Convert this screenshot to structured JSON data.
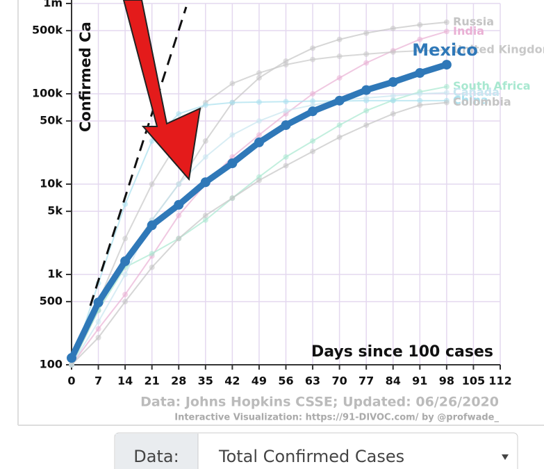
{
  "chart_data": {
    "type": "line",
    "y_label": "Confirmed Ca",
    "x_label": "Days since 100 cases",
    "source": "Data: Johns Hopkins CSSE; Updated: 06/26/2020",
    "credit": "Interactive Visualization: https://91-DIVOC.com/ by @profwade_",
    "x": [
      0,
      7,
      14,
      21,
      28,
      35,
      42,
      49,
      56,
      63,
      70,
      77,
      84,
      91,
      98
    ],
    "series": [
      {
        "name": "Russia",
        "color": "#c4c4c4",
        "values": [
          100,
          400,
          1500,
          4000,
          10000,
          30000,
          80000,
          150000,
          230000,
          320000,
          400000,
          470000,
          530000,
          580000,
          620000
        ]
      },
      {
        "name": "India",
        "color": "#eab0d4",
        "values": [
          100,
          250,
          600,
          1600,
          4500,
          10000,
          20000,
          35000,
          60000,
          100000,
          150000,
          220000,
          300000,
          400000,
          490000
        ]
      },
      {
        "name": "United Kingdom",
        "color": "#c8c8c8",
        "values": [
          100,
          500,
          2500,
          10000,
          30000,
          80000,
          130000,
          170000,
          210000,
          240000,
          260000,
          275000,
          290000,
          300000,
          305000
        ]
      },
      {
        "name": "South Africa",
        "color": "#a8e8d0",
        "values": [
          100,
          400,
          1200,
          1700,
          2500,
          4000,
          7000,
          12000,
          20000,
          30000,
          45000,
          65000,
          85000,
          105000,
          120000
        ]
      },
      {
        "name": "China",
        "color": "#a8e0ee",
        "values": [
          100,
          800,
          6000,
          30000,
          60000,
          75000,
          80000,
          81000,
          82000,
          83000,
          83000,
          84000,
          84000,
          84000,
          84000
        ]
      },
      {
        "name": "Canada",
        "color": "#c8e6f0",
        "values": [
          100,
          300,
          1000,
          4000,
          10000,
          20000,
          35000,
          50000,
          65000,
          75000,
          85000,
          90000,
          95000,
          100000,
          103000
        ]
      },
      {
        "name": "Colombia",
        "color": "#c4c4c4",
        "values": [
          100,
          200,
          500,
          1200,
          2500,
          4500,
          7000,
          11000,
          16000,
          23000,
          33000,
          45000,
          60000,
          75000,
          80000
        ]
      },
      {
        "name": "Mexico",
        "color": "#2f78b8",
        "values": [
          119,
          490,
          1400,
          3500,
          5900,
          10500,
          17000,
          29000,
          45000,
          64000,
          84000,
          110000,
          135000,
          170000,
          210000
        ]
      }
    ],
    "log_y": true,
    "grid": true,
    "xlim": [
      0,
      112
    ],
    "xticks": [
      0,
      7,
      14,
      21,
      28,
      35,
      42,
      49,
      56,
      63,
      70,
      77,
      84,
      91,
      98,
      105,
      112
    ],
    "ylim": [
      100,
      1000000
    ],
    "yticks": [
      100,
      500,
      {
        "value": 1000,
        "label": "1k"
      },
      {
        "value": 5000,
        "label": "5k"
      },
      {
        "value": 10000,
        "label": "10k"
      },
      {
        "value": 50000,
        "label": "50k"
      },
      {
        "value": 100000,
        "label": "100k"
      },
      {
        "value": 500000,
        "label": "500k"
      },
      {
        "value": 1000000,
        "label": "1m"
      }
    ]
  },
  "selector": {
    "label": "Data:",
    "value": "Total Confirmed Cases"
  }
}
